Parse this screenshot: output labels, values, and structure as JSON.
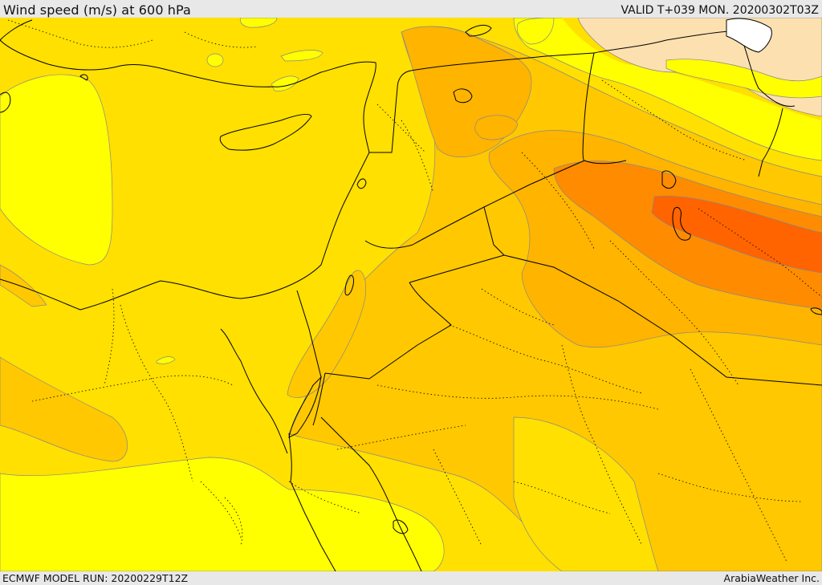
{
  "header": {
    "title": "Wind speed (m/s) at 600 hPa",
    "valid_time": "VALID T+039 MON. 20200302T03Z"
  },
  "footer": {
    "model_run": "ECMWF MODEL RUN: 20200229T12Z",
    "credit": "ArabiaWeather Inc."
  },
  "map": {
    "field": "wind speed",
    "level_hPa": 600,
    "colors": {
      "very_light": "#fde0b0",
      "light_yellow": "#ffff00",
      "yellow": "#ffe000",
      "gold": "#ffc800",
      "amber": "#ffb400",
      "orange": "#ff8c00",
      "dark_orange": "#ff6400",
      "border": "#000000"
    }
  }
}
